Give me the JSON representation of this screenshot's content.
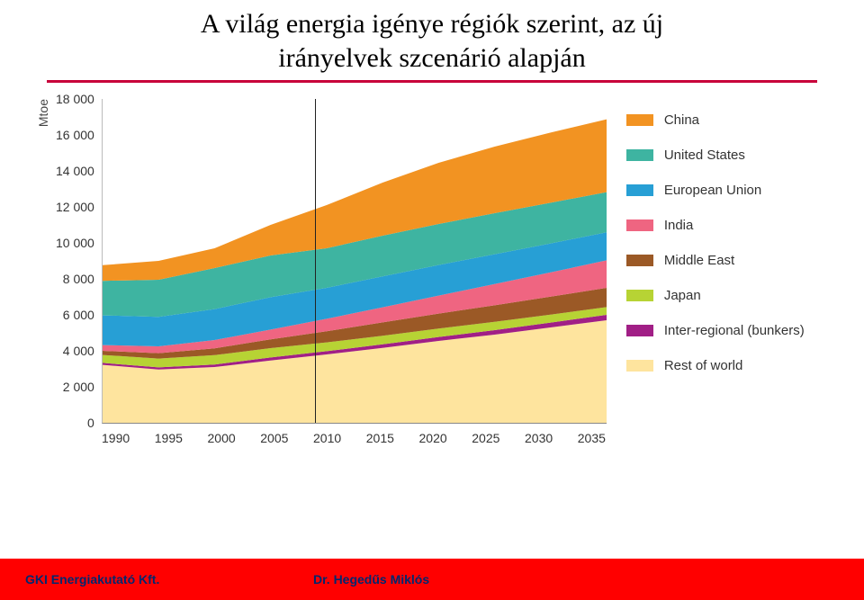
{
  "title_line1": "A világ energia igénye régiók szerint, az új",
  "title_line2": "irányelvek szcenárió alapján",
  "hr_color": "#c8013a",
  "chart": {
    "type": "area",
    "ytitle": "Mtoe",
    "ylim": [
      0,
      18000
    ],
    "yticks": [
      "18 000",
      "16 000",
      "14 000",
      "12 000",
      "10 000",
      "8 000",
      "6 000",
      "4 000",
      "2 000",
      "0"
    ],
    "xticks": [
      "1990",
      "1995",
      "2000",
      "2005",
      "2010",
      "2015",
      "2020",
      "2025",
      "2030",
      "2035"
    ],
    "x_years": [
      1990,
      1995,
      2000,
      2005,
      2010,
      2015,
      2020,
      2025,
      2030,
      2035
    ],
    "vline_year": 2009,
    "background_color": "#ffffff",
    "axis_color": "#888888",
    "label_fontsize": 14,
    "series": [
      {
        "name": "China",
        "color": "#f29322",
        "values": [
          870,
          1050,
          1100,
          1700,
          2400,
          2950,
          3400,
          3700,
          3900,
          4050
        ]
      },
      {
        "name": "United States",
        "color": "#3eb4a1",
        "values": [
          1920,
          2060,
          2280,
          2320,
          2200,
          2260,
          2280,
          2280,
          2260,
          2230
        ]
      },
      {
        "name": "European Union",
        "color": "#279fd5",
        "values": [
          1650,
          1640,
          1720,
          1800,
          1720,
          1720,
          1700,
          1660,
          1610,
          1560
        ]
      },
      {
        "name": "India",
        "color": "#ef6581",
        "values": [
          320,
          380,
          460,
          540,
          690,
          840,
          1000,
          1180,
          1350,
          1530
        ]
      },
      {
        "name": "Middle East",
        "color": "#9b5926",
        "values": [
          230,
          300,
          380,
          490,
          620,
          740,
          830,
          920,
          1000,
          1070
        ]
      },
      {
        "name": "Japan",
        "color": "#b7d334",
        "values": [
          440,
          490,
          520,
          520,
          490,
          480,
          470,
          460,
          440,
          430
        ]
      },
      {
        "name": "Inter-regional (bunkers)",
        "color": "#a11f86",
        "values": [
          110,
          120,
          140,
          170,
          180,
          200,
          220,
          250,
          270,
          300
        ]
      },
      {
        "name": "Rest of world",
        "color": "#fee49e",
        "values": [
          3220,
          2960,
          3100,
          3460,
          3800,
          4160,
          4550,
          4900,
          5300,
          5700
        ]
      }
    ]
  },
  "footer": {
    "background_color": "#ff0000",
    "text_color": "#002870",
    "left": "GKI Energiakutató Kft.",
    "center": "Dr. Hegedűs Miklós"
  }
}
